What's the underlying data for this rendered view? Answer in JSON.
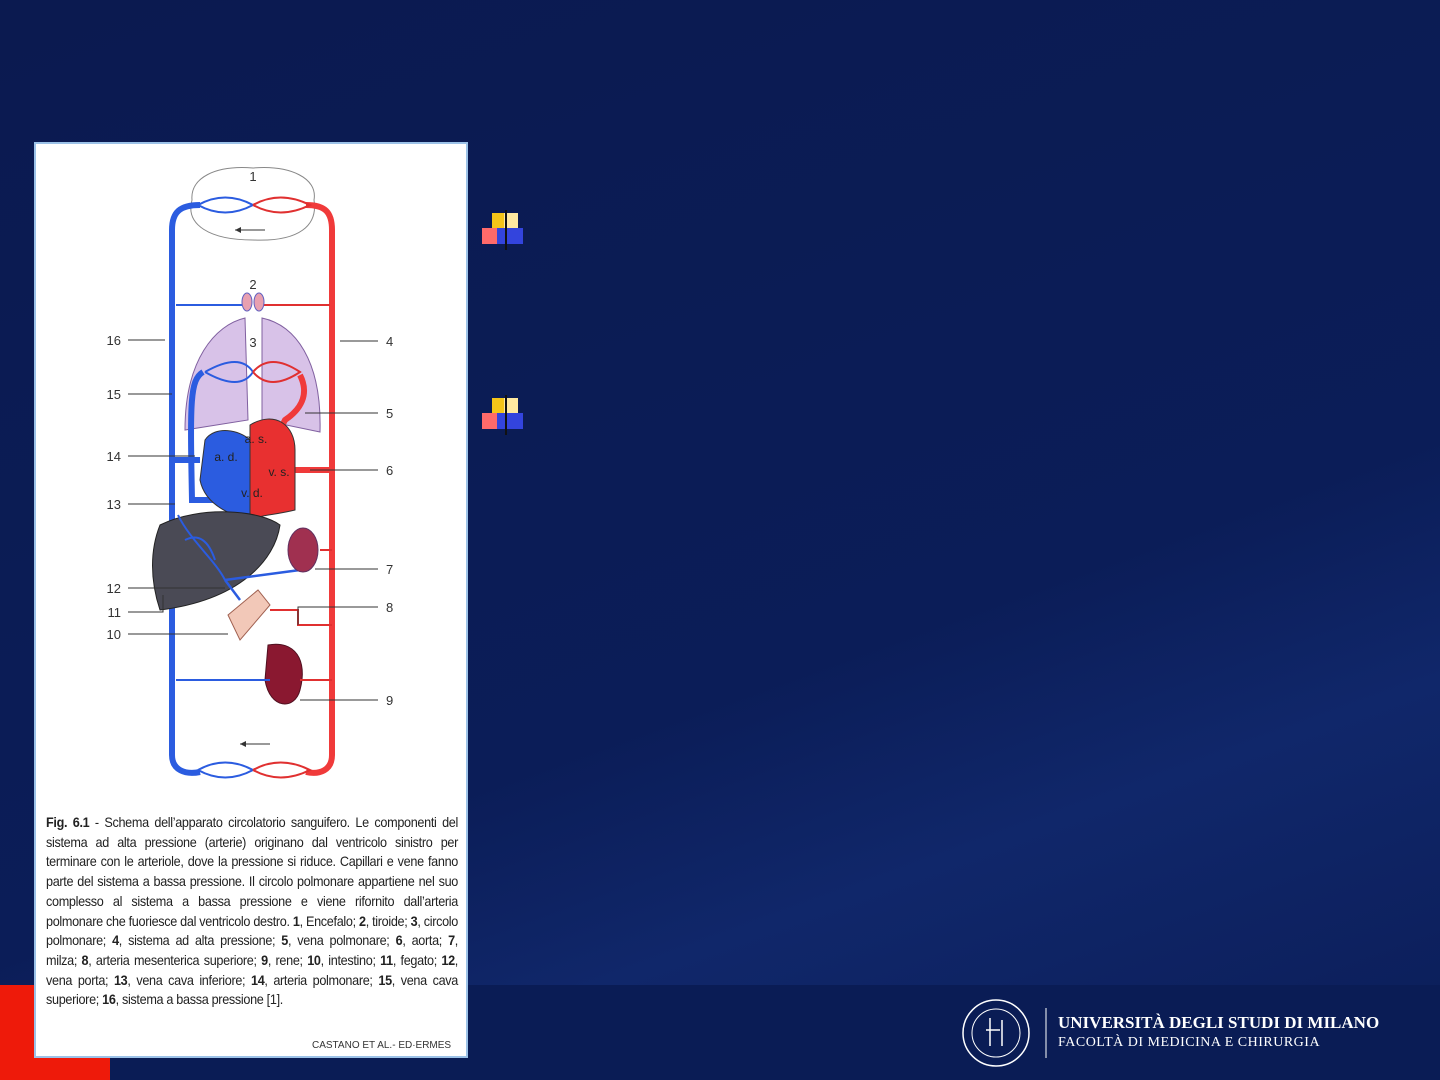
{
  "figure": {
    "number_labels": [
      "1",
      "2",
      "3",
      "4",
      "5",
      "6",
      "7",
      "8",
      "9",
      "10",
      "11",
      "12",
      "13",
      "14",
      "15",
      "16"
    ],
    "heart_labels": [
      "a. s.",
      "a. d.",
      "v. s.",
      "v. d."
    ],
    "caption": [
      {
        "text": "Fig. 6.1",
        "bold": true
      },
      {
        "text": " - Schema dell’apparato circolatorio sanguifero. Le componenti del sistema ad alta pressione (arterie) originano dal ventricolo sinistro per terminare con le arteriole, dove la pressione si riduce. Capillari e vene fanno parte del sistema a bassa pressione. Il circolo polmonare appartiene nel suo complesso al sistema a bassa pressione e viene rifornito dall’arteria polmonare che fuoriesce dal ventricolo destro. ",
        "bold": false
      },
      {
        "text": "1",
        "bold": true
      },
      {
        "text": ", Encefalo; ",
        "bold": false
      },
      {
        "text": "2",
        "bold": true
      },
      {
        "text": ", tiroide; ",
        "bold": false
      },
      {
        "text": "3",
        "bold": true
      },
      {
        "text": ", circolo polmonare; ",
        "bold": false
      },
      {
        "text": "4",
        "bold": true
      },
      {
        "text": ", sistema ad alta pressione; ",
        "bold": false
      },
      {
        "text": "5",
        "bold": true
      },
      {
        "text": ", vena polmonare; ",
        "bold": false
      },
      {
        "text": "6",
        "bold": true
      },
      {
        "text": ", aorta; ",
        "bold": false
      },
      {
        "text": "7",
        "bold": true
      },
      {
        "text": ", milza; ",
        "bold": false
      },
      {
        "text": "8",
        "bold": true
      },
      {
        "text": ", arteria mesenterica superiore; ",
        "bold": false
      },
      {
        "text": "9",
        "bold": true
      },
      {
        "text": ", rene; ",
        "bold": false
      },
      {
        "text": "10",
        "bold": true
      },
      {
        "text": ", intestino; ",
        "bold": false
      },
      {
        "text": "11",
        "bold": true
      },
      {
        "text": ", fegato; ",
        "bold": false
      },
      {
        "text": "12",
        "bold": true
      },
      {
        "text": ", vena porta; ",
        "bold": false
      },
      {
        "text": "13",
        "bold": true
      },
      {
        "text": ", vena cava inferiore; ",
        "bold": false
      },
      {
        "text": "14",
        "bold": true
      },
      {
        "text": ", arteria polmonare; ",
        "bold": false
      },
      {
        "text": "15",
        "bold": true
      },
      {
        "text": ", vena cava superiore; ",
        "bold": false
      },
      {
        "text": "16",
        "bold": true
      },
      {
        "text": ", sistema a bassa pressione [1].",
        "bold": false
      }
    ],
    "credit": "CASTANO  ET  AL.- ED·ERMES"
  },
  "footer": {
    "university": "UNIVERSITÀ DEGLI STUDI DI MILANO",
    "faculty": "FACOLTÀ DI MEDICINA E CHIRURGIA"
  }
}
